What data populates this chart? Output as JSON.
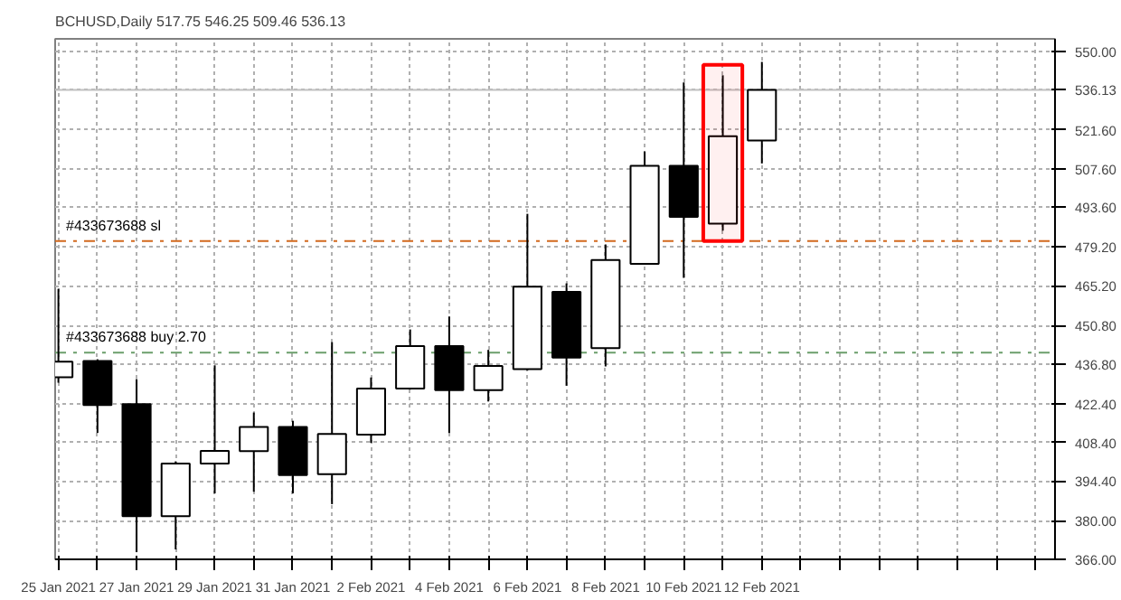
{
  "chart_data": {
    "type": "candlestick",
    "title": "BCHUSD,Daily  517.75 546.25 509.46 536.13",
    "x": [
      "2021-01-25",
      "2021-01-26",
      "2021-01-27",
      "2021-01-28",
      "2021-01-29",
      "2021-01-30",
      "2021-01-31",
      "2021-02-01",
      "2021-02-02",
      "2021-02-03",
      "2021-02-04",
      "2021-02-05",
      "2021-02-06",
      "2021-02-07",
      "2021-02-08",
      "2021-02-09",
      "2021-02-10",
      "2021-02-11",
      "2021-02-12"
    ],
    "ohlc": [
      [
        432.0,
        464.0,
        430.0,
        437.6
      ],
      [
        437.9,
        438.5,
        411.8,
        421.9
      ],
      [
        422.2,
        431.3,
        368.6,
        381.6
      ],
      [
        381.6,
        401.5,
        369.6,
        400.7
      ],
      [
        400.7,
        436.3,
        389.9,
        405.3
      ],
      [
        405.2,
        419.2,
        390.5,
        414.0
      ],
      [
        414.0,
        416.2,
        389.9,
        396.5
      ],
      [
        396.9,
        444.7,
        386.0,
        411.4
      ],
      [
        411.2,
        431.9,
        408.2,
        427.9
      ],
      [
        427.9,
        449.3,
        427.5,
        443.3
      ],
      [
        443.3,
        454.0,
        411.8,
        427.3
      ],
      [
        427.3,
        441.9,
        423.2,
        436.1
      ],
      [
        434.9,
        491.2,
        434.5,
        464.8
      ],
      [
        462.9,
        466.0,
        428.9,
        439.1
      ],
      [
        442.5,
        480.1,
        435.9,
        474.5
      ],
      [
        473.1,
        513.8,
        472.8,
        508.6
      ],
      [
        508.6,
        538.8,
        468.0,
        490.1
      ],
      [
        487.6,
        541.4,
        485.1,
        519.3
      ],
      [
        517.75,
        546.25,
        509.46,
        536.13
      ]
    ],
    "colors": [
      "#ffffff",
      "#000000",
      "#000000",
      "#ffffff",
      "#ffffff",
      "#ffffff",
      "#000000",
      "#ffffff",
      "#ffffff",
      "#ffffff",
      "#000000",
      "#ffffff",
      "#ffffff",
      "#000000",
      "#ffffff",
      "#ffffff",
      "#000000",
      "#ffffff",
      "#ffffff"
    ],
    "xlim": [
      "2021-01-24T22:00",
      "2021-02-19T12:00"
    ],
    "xticks": [
      {
        "value": "2021-01-25",
        "label": "25 Jan 2021"
      },
      {
        "value": "2021-01-26",
        "label": null
      },
      {
        "value": "2021-01-27",
        "label": "27 Jan 2021"
      },
      {
        "value": "2021-01-28",
        "label": null
      },
      {
        "value": "2021-01-29",
        "label": "29 Jan 2021"
      },
      {
        "value": "2021-01-30",
        "label": null
      },
      {
        "value": "2021-01-31",
        "label": "31 Jan 2021"
      },
      {
        "value": "2021-02-01",
        "label": null
      },
      {
        "value": "2021-02-02",
        "label": "2 Feb 2021"
      },
      {
        "value": "2021-02-03",
        "label": null
      },
      {
        "value": "2021-02-04",
        "label": "4 Feb 2021"
      },
      {
        "value": "2021-02-05",
        "label": null
      },
      {
        "value": "2021-02-06",
        "label": "6 Feb 2021"
      },
      {
        "value": "2021-02-07",
        "label": null
      },
      {
        "value": "2021-02-08",
        "label": "8 Feb 2021"
      },
      {
        "value": "2021-02-09",
        "label": null
      },
      {
        "value": "2021-02-10",
        "label": "10 Feb 2021"
      },
      {
        "value": "2021-02-11",
        "label": null
      },
      {
        "value": "2021-02-12",
        "label": "12 Feb 2021"
      },
      {
        "value": "2021-02-13",
        "label": null
      },
      {
        "value": "2021-02-14",
        "label": null
      },
      {
        "value": "2021-02-15",
        "label": null
      },
      {
        "value": "2021-02-16",
        "label": null
      },
      {
        "value": "2021-02-17",
        "label": null
      },
      {
        "value": "2021-02-18",
        "label": null
      },
      {
        "value": "2021-02-19",
        "label": null
      }
    ],
    "ylim": [
      366.0,
      554.6
    ],
    "yticks": [
      {
        "value": 366.0,
        "label": "366.00"
      },
      {
        "value": 380.0,
        "label": "380.00"
      },
      {
        "value": 394.4,
        "label": "394.40"
      },
      {
        "value": 408.4,
        "label": "408.40"
      },
      {
        "value": 422.4,
        "label": "422.40"
      },
      {
        "value": 436.8,
        "label": "436.80"
      },
      {
        "value": 450.8,
        "label": "450.80"
      },
      {
        "value": 465.2,
        "label": "465.20"
      },
      {
        "value": 479.2,
        "label": "479.20"
      },
      {
        "value": 493.6,
        "label": "493.60"
      },
      {
        "value": 507.6,
        "label": "507.60"
      },
      {
        "value": 521.6,
        "label": "521.60"
      },
      {
        "value": 536.13,
        "label": "536.13"
      },
      {
        "value": 550.0,
        "label": "550.00"
      }
    ],
    "grid": true,
    "ref_lines": [
      {
        "axis": "y",
        "value": 481.3,
        "label": "#433673688 sl",
        "color": "#d2691e",
        "line_style": "dashdot"
      },
      {
        "axis": "y",
        "value": 440.9,
        "label": "#433673688 buy 2.70",
        "color": "#6b9e6b",
        "line_style": "dashdot"
      },
      {
        "axis": "y",
        "value": 536.13,
        "label": null,
        "color": "#c0c0c0",
        "line_style": "solid"
      }
    ],
    "bands": [
      {
        "axis": "x",
        "from": "2021-02-10T12:00",
        "to": "2021-02-11T12:00",
        "label": null,
        "color": "#ff0000"
      }
    ]
  }
}
